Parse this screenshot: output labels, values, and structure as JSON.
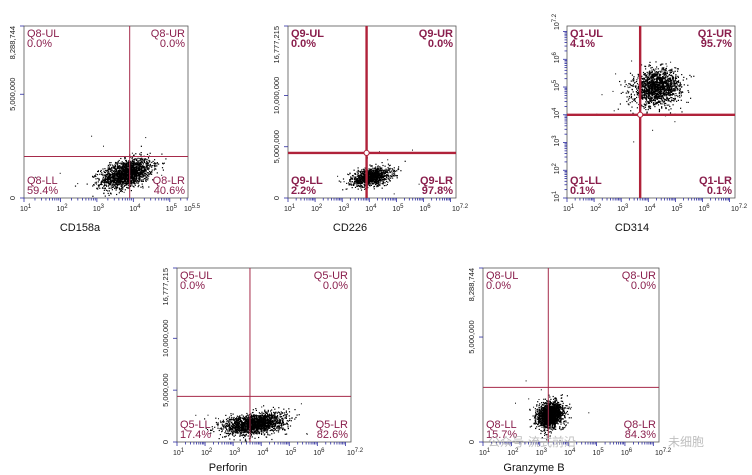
{
  "chart_data": [
    {
      "type": "scatter",
      "xlabel": "CD158a",
      "xaxis": {
        "scale": "log",
        "range": [
          1,
          5.5
        ],
        "tick_labels": [
          "10^1",
          "10^2",
          "10^3",
          "10^4",
          "10^5",
          "10^5.5"
        ]
      },
      "yaxis": {
        "scale": "linear",
        "range": [
          0,
          8288744
        ],
        "tick_labels": [
          "0",
          "5,000,000",
          "8,288,744"
        ]
      },
      "gate": {
        "x": 3.9,
        "y": 2000000
      },
      "quadrants": {
        "UL": {
          "name": "Q8-UL",
          "value": "0.0%"
        },
        "UR": {
          "name": "Q8-UR",
          "value": "0.0%"
        },
        "LL": {
          "name": "Q8-LL",
          "value": "59.4%"
        },
        "LR": {
          "name": "Q8-LR",
          "value": "40.6%"
        }
      },
      "cluster": {
        "cx": 3.8,
        "cy": 1200000,
        "sx": 0.38,
        "sy": 330000,
        "rot": 0.45,
        "n": 1700
      },
      "style": {
        "line": "#a62a4a",
        "label": "#8a1f4d",
        "bold": false
      }
    },
    {
      "type": "scatter",
      "xlabel": "CD226",
      "xaxis": {
        "scale": "log",
        "range": [
          1,
          7.2
        ],
        "tick_labels": [
          "10^1",
          "10^2",
          "10^3",
          "10^4",
          "10^5",
          "10^6",
          "10^7.2"
        ]
      },
      "yaxis": {
        "scale": "linear",
        "range": [
          0,
          16777215
        ],
        "tick_labels": [
          "0",
          "5,000,000",
          "10,000,000",
          "16,777,215"
        ]
      },
      "gate": {
        "x": 3.9,
        "y": 4400000
      },
      "quadrants": {
        "UL": {
          "name": "Q9-UL",
          "value": "0.0%"
        },
        "UR": {
          "name": "Q9-UR",
          "value": "0.0%"
        },
        "LL": {
          "name": "Q9-LL",
          "value": "2.2%"
        },
        "LR": {
          "name": "Q9-LR",
          "value": "97.8%"
        }
      },
      "cluster": {
        "cx": 4.05,
        "cy": 2100000,
        "sx": 0.38,
        "sy": 420000,
        "rot": 0.3,
        "n": 1100
      },
      "style": {
        "line": "#b0223a",
        "label": "#8a1f4d",
        "bold": true
      }
    },
    {
      "type": "scatter",
      "xlabel": "CD314",
      "xaxis": {
        "scale": "log",
        "range": [
          1,
          7.2
        ],
        "tick_labels": [
          "10^1",
          "10^2",
          "10^3",
          "10^4",
          "10^5",
          "10^6",
          "10^7.2"
        ]
      },
      "yaxis": {
        "scale": "log",
        "range": [
          1,
          7.2
        ],
        "tick_labels": [
          "10^1",
          "10^2",
          "10^3",
          "10^4",
          "10^5",
          "10^6",
          "10^7.2"
        ]
      },
      "gate": {
        "x": 3.7,
        "y": 4.0
      },
      "quadrants": {
        "UL": {
          "name": "Q1-UL",
          "value": "4.1%"
        },
        "UR": {
          "name": "Q1-UR",
          "value": "95.7%"
        },
        "LL": {
          "name": "Q1-LL",
          "value": "0.1%"
        },
        "LR": {
          "name": "Q1-LR",
          "value": "0.1%"
        }
      },
      "cluster": {
        "cx": 4.3,
        "cy": 5.0,
        "sx": 0.45,
        "sy": 0.32,
        "rot": 0.35,
        "n": 1500
      },
      "style": {
        "line": "#b0223a",
        "label": "#8a1f4d",
        "bold": true
      }
    },
    {
      "type": "scatter",
      "xlabel": "Perforin",
      "xaxis": {
        "scale": "log",
        "range": [
          1,
          7.2
        ],
        "tick_labels": [
          "10^1",
          "10^2",
          "10^3",
          "10^4",
          "10^5",
          "10^6",
          "10^7.2"
        ]
      },
      "yaxis": {
        "scale": "linear",
        "range": [
          0,
          16777215
        ],
        "tick_labels": [
          "0",
          "5,000,000",
          "10,000,000",
          "16,777,215"
        ]
      },
      "gate": {
        "x": 3.6,
        "y": 4400000
      },
      "quadrants": {
        "UL": {
          "name": "Q5-UL",
          "value": "0.0%"
        },
        "UR": {
          "name": "Q5-UR",
          "value": "0.0%"
        },
        "LL": {
          "name": "Q5-LL",
          "value": "17.4%"
        },
        "LR": {
          "name": "Q5-LR",
          "value": "82.6%"
        }
      },
      "cluster": {
        "cx": 3.75,
        "cy": 1800000,
        "sx": 0.55,
        "sy": 500000,
        "rot": 0.2,
        "n": 1700
      },
      "style": {
        "line": "#a62a4a",
        "label": "#8a1f4d",
        "bold": false
      }
    },
    {
      "type": "scatter",
      "xlabel": "Granzyme B",
      "xaxis": {
        "scale": "log",
        "range": [
          1,
          7.2
        ],
        "tick_labels": [
          "10^1",
          "10^2",
          "10^3",
          "10^4",
          "10^5",
          "10^6",
          "10^7.2"
        ]
      },
      "yaxis": {
        "scale": "linear",
        "range": [
          0,
          8288744
        ],
        "tick_labels": [
          "0",
          "5,000,000",
          "8,288,744"
        ]
      },
      "gate": {
        "x": 3.3,
        "y": 2600000
      },
      "quadrants": {
        "UL": {
          "name": "Q8-UL",
          "value": "0.0%"
        },
        "UR": {
          "name": "Q8-UR",
          "value": "0.0%"
        },
        "LL": {
          "name": "Q8-LL",
          "value": "15.7%"
        },
        "LR": {
          "name": "Q8-LR",
          "value": "84.3%"
        }
      },
      "cluster": {
        "cx": 3.35,
        "cy": 1300000,
        "sx": 0.28,
        "sy": 450000,
        "rot": -1.05,
        "n": 1700
      },
      "style": {
        "line": "#a62a4a",
        "label": "#8a1f4d",
        "bold": false
      }
    }
  ],
  "watermark": {
    "text": "公众号·流式前沿",
    "suffix": "未细胞"
  }
}
